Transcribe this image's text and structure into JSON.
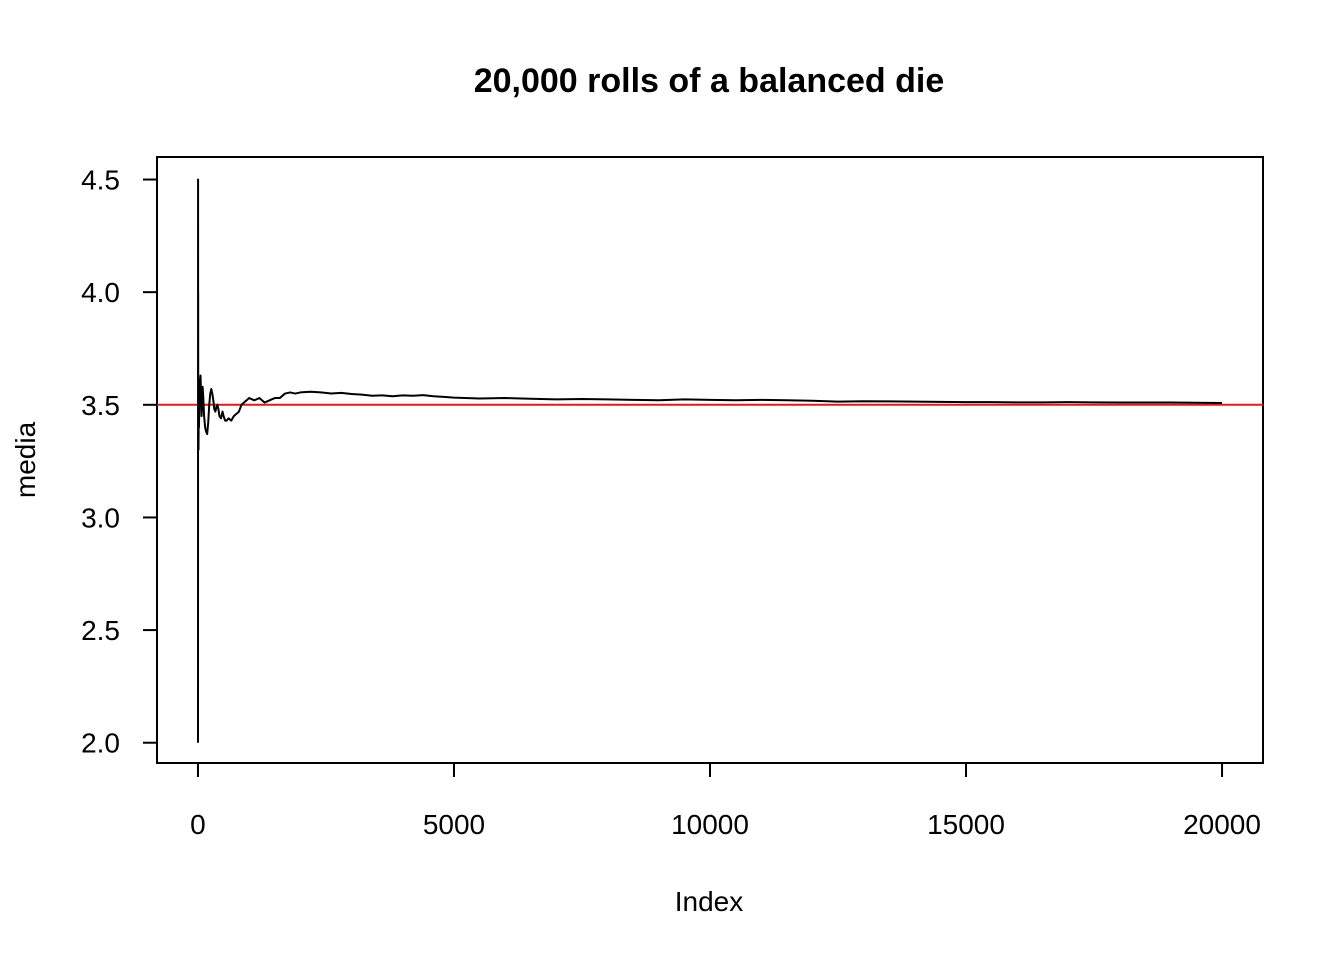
{
  "chart_data": {
    "type": "line",
    "title": "20,000 rolls of a balanced die",
    "xlabel": "Index",
    "ylabel": "media",
    "xlim": [
      -800,
      20800
    ],
    "ylim": [
      1.91,
      4.6
    ],
    "x_ticks": [
      0,
      5000,
      10000,
      15000,
      20000
    ],
    "x_tick_labels": [
      "0",
      "5000",
      "10000",
      "15000",
      "20000"
    ],
    "y_ticks": [
      2.0,
      2.5,
      3.0,
      3.5,
      4.0,
      4.5
    ],
    "y_tick_labels": [
      "2.0",
      "2.5",
      "3.0",
      "3.5",
      "4.0",
      "4.5"
    ],
    "grid": false,
    "series": [
      {
        "color": "#000000",
        "points": [
          [
            1,
            2.0
          ],
          [
            2,
            4.5
          ],
          [
            3,
            3.33
          ],
          [
            4,
            4.0
          ],
          [
            5,
            3.4
          ],
          [
            6,
            3.5
          ],
          [
            8,
            3.38
          ],
          [
            10,
            3.3
          ],
          [
            15,
            3.45
          ],
          [
            20,
            3.4
          ],
          [
            30,
            3.55
          ],
          [
            40,
            3.6
          ],
          [
            50,
            3.63
          ],
          [
            60,
            3.55
          ],
          [
            70,
            3.45
          ],
          [
            80,
            3.5
          ],
          [
            90,
            3.58
          ],
          [
            100,
            3.55
          ],
          [
            120,
            3.45
          ],
          [
            140,
            3.4
          ],
          [
            160,
            3.38
          ],
          [
            180,
            3.37
          ],
          [
            200,
            3.42
          ],
          [
            220,
            3.5
          ],
          [
            240,
            3.55
          ],
          [
            260,
            3.57
          ],
          [
            280,
            3.55
          ],
          [
            300,
            3.52
          ],
          [
            320,
            3.48
          ],
          [
            340,
            3.47
          ],
          [
            360,
            3.49
          ],
          [
            380,
            3.5
          ],
          [
            400,
            3.48
          ],
          [
            420,
            3.45
          ],
          [
            450,
            3.44
          ],
          [
            480,
            3.47
          ],
          [
            500,
            3.45
          ],
          [
            530,
            3.43
          ],
          [
            560,
            3.43
          ],
          [
            600,
            3.44
          ],
          [
            650,
            3.43
          ],
          [
            700,
            3.45
          ],
          [
            750,
            3.46
          ],
          [
            800,
            3.47
          ],
          [
            850,
            3.5
          ],
          [
            900,
            3.51
          ],
          [
            950,
            3.52
          ],
          [
            1000,
            3.53
          ],
          [
            1100,
            3.52
          ],
          [
            1200,
            3.53
          ],
          [
            1300,
            3.51
          ],
          [
            1400,
            3.52
          ],
          [
            1500,
            3.53
          ],
          [
            1600,
            3.53
          ],
          [
            1700,
            3.55
          ],
          [
            1800,
            3.555
          ],
          [
            1900,
            3.55
          ],
          [
            2000,
            3.555
          ],
          [
            2200,
            3.558
          ],
          [
            2400,
            3.555
          ],
          [
            2600,
            3.55
          ],
          [
            2800,
            3.553
          ],
          [
            3000,
            3.548
          ],
          [
            3200,
            3.545
          ],
          [
            3400,
            3.54
          ],
          [
            3600,
            3.542
          ],
          [
            3800,
            3.538
          ],
          [
            4000,
            3.542
          ],
          [
            4200,
            3.54
          ],
          [
            4400,
            3.543
          ],
          [
            4600,
            3.538
          ],
          [
            4800,
            3.535
          ],
          [
            5000,
            3.532
          ],
          [
            5500,
            3.528
          ],
          [
            6000,
            3.53
          ],
          [
            6500,
            3.527
          ],
          [
            7000,
            3.524
          ],
          [
            7500,
            3.526
          ],
          [
            8000,
            3.524
          ],
          [
            8500,
            3.522
          ],
          [
            9000,
            3.52
          ],
          [
            9500,
            3.524
          ],
          [
            10000,
            3.522
          ],
          [
            10500,
            3.52
          ],
          [
            11000,
            3.522
          ],
          [
            11500,
            3.52
          ],
          [
            12000,
            3.518
          ],
          [
            12500,
            3.514
          ],
          [
            13000,
            3.516
          ],
          [
            13500,
            3.515
          ],
          [
            14000,
            3.514
          ],
          [
            14500,
            3.513
          ],
          [
            15000,
            3.512
          ],
          [
            15500,
            3.512
          ],
          [
            16000,
            3.511
          ],
          [
            16500,
            3.511
          ],
          [
            17000,
            3.512
          ],
          [
            17500,
            3.511
          ],
          [
            18000,
            3.51
          ],
          [
            18500,
            3.51
          ],
          [
            19000,
            3.51
          ],
          [
            19500,
            3.509
          ],
          [
            20000,
            3.508
          ]
        ]
      }
    ],
    "reference_lines": [
      {
        "orientation": "horizontal",
        "y": 3.5,
        "color": "#e31a1c"
      }
    ]
  }
}
